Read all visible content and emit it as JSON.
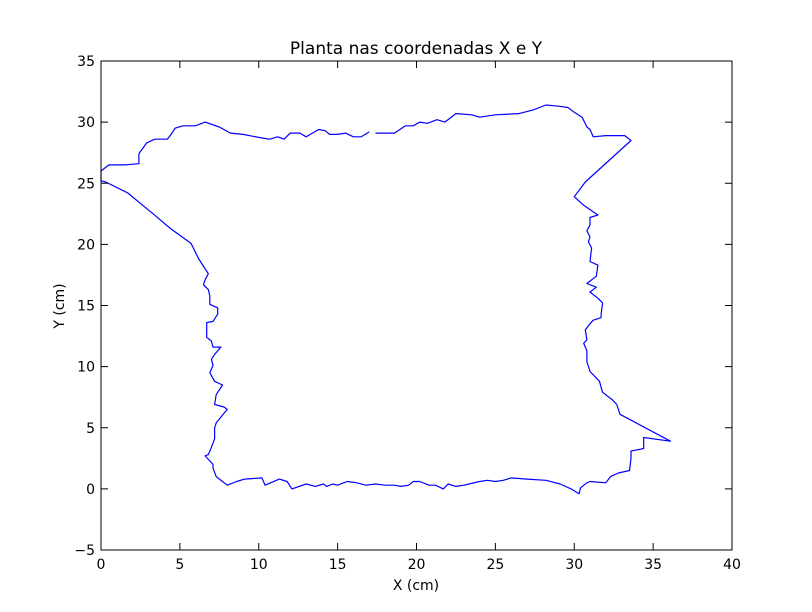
{
  "chart_data": {
    "type": "line",
    "title": "Planta nas coordenadas X e Y",
    "xlabel": "X (cm)",
    "ylabel": "Y (cm)",
    "xlim": [
      0,
      40
    ],
    "ylim": [
      -5,
      35
    ],
    "xticks": [
      0,
      5,
      10,
      15,
      20,
      25,
      30,
      35,
      40
    ],
    "yticks": [
      -5,
      0,
      5,
      10,
      15,
      20,
      25,
      30,
      35
    ],
    "xtick_labels": [
      "0",
      "5",
      "10",
      "15",
      "20",
      "25",
      "30",
      "35",
      "40"
    ],
    "ytick_labels": [
      "−5",
      "0",
      "5",
      "10",
      "15",
      "20",
      "25",
      "30",
      "35"
    ],
    "grid": false,
    "line_color": "#0000ff",
    "series": [
      {
        "segments": [
          [
            [
              17.0,
              29.2
            ],
            [
              16.5,
              28.8
            ],
            [
              16.0,
              28.8
            ],
            [
              15.5,
              29.1
            ],
            [
              15.0,
              29.0
            ],
            [
              14.5,
              29.0
            ],
            [
              14.2,
              29.3
            ],
            [
              13.8,
              29.4
            ],
            [
              13.4,
              29.1
            ],
            [
              13.0,
              28.8
            ],
            [
              12.6,
              29.1
            ],
            [
              12.0,
              29.1
            ],
            [
              11.6,
              28.6
            ],
            [
              11.2,
              28.8
            ],
            [
              10.7,
              28.6
            ],
            [
              10.2,
              28.7
            ],
            [
              9.0,
              29.0
            ],
            [
              8.2,
              29.1
            ],
            [
              7.5,
              29.6
            ],
            [
              6.6,
              30.0
            ],
            [
              6.0,
              29.7
            ],
            [
              5.2,
              29.7
            ],
            [
              4.7,
              29.5
            ],
            [
              4.5,
              29.1
            ],
            [
              4.2,
              28.6
            ],
            [
              3.4,
              28.6
            ],
            [
              2.9,
              28.3
            ],
            [
              2.5,
              27.6
            ],
            [
              2.4,
              27.4
            ],
            [
              2.4,
              26.6
            ],
            [
              1.5,
              26.5
            ],
            [
              0.5,
              26.5
            ],
            [
              0.0,
              26.0
            ],
            [
              0.0,
              25.2
            ],
            [
              0.3,
              25.1
            ],
            [
              1.7,
              24.2
            ],
            [
              3.3,
              22.5
            ],
            [
              4.4,
              21.3
            ],
            [
              5.7,
              20.1
            ],
            [
              6.2,
              18.8
            ],
            [
              6.8,
              17.6
            ],
            [
              6.6,
              17.1
            ],
            [
              6.5,
              16.7
            ],
            [
              6.8,
              16.3
            ],
            [
              6.9,
              15.8
            ],
            [
              6.9,
              15.1
            ],
            [
              7.4,
              14.8
            ],
            [
              7.4,
              14.3
            ],
            [
              7.1,
              13.7
            ],
            [
              6.7,
              13.6
            ],
            [
              6.7,
              12.4
            ],
            [
              7.0,
              12.1
            ],
            [
              7.1,
              11.6
            ],
            [
              7.6,
              11.6
            ],
            [
              7.2,
              11.0
            ],
            [
              7.0,
              10.6
            ],
            [
              7.1,
              10.1
            ],
            [
              6.9,
              9.5
            ],
            [
              7.2,
              8.8
            ],
            [
              7.7,
              8.5
            ],
            [
              7.3,
              7.7
            ],
            [
              7.2,
              6.9
            ],
            [
              7.8,
              6.7
            ],
            [
              8.0,
              6.5
            ],
            [
              7.3,
              5.4
            ],
            [
              7.2,
              5.0
            ],
            [
              7.2,
              4.1
            ],
            [
              7.0,
              3.4
            ],
            [
              6.8,
              2.8
            ],
            [
              6.6,
              2.7
            ],
            [
              7.1,
              2.0
            ],
            [
              7.1,
              1.7
            ],
            [
              7.3,
              1.0
            ],
            [
              8.0,
              0.3
            ],
            [
              8.6,
              0.6
            ],
            [
              9.1,
              0.8
            ],
            [
              10.2,
              0.9
            ],
            [
              10.4,
              0.3
            ],
            [
              11.3,
              0.8
            ],
            [
              11.8,
              0.6
            ],
            [
              12.1,
              0.0
            ],
            [
              13.0,
              0.4
            ],
            [
              13.6,
              0.2
            ],
            [
              14.1,
              0.4
            ],
            [
              14.3,
              0.2
            ],
            [
              14.7,
              0.4
            ],
            [
              15.0,
              0.3
            ],
            [
              15.6,
              0.6
            ],
            [
              16.2,
              0.5
            ],
            [
              16.8,
              0.3
            ],
            [
              17.4,
              0.4
            ],
            [
              18.0,
              0.3
            ],
            [
              18.6,
              0.3
            ],
            [
              19.0,
              0.2
            ],
            [
              19.5,
              0.3
            ],
            [
              19.8,
              0.6
            ],
            [
              20.2,
              0.6
            ],
            [
              20.8,
              0.3
            ],
            [
              21.2,
              0.3
            ],
            [
              21.7,
              0.0
            ],
            [
              22.0,
              0.4
            ],
            [
              22.5,
              0.2
            ],
            [
              23.0,
              0.3
            ],
            [
              24.0,
              0.6
            ],
            [
              24.5,
              0.7
            ],
            [
              25.0,
              0.6
            ],
            [
              25.5,
              0.7
            ],
            [
              26.0,
              0.9
            ],
            [
              27.0,
              0.8
            ],
            [
              28.2,
              0.7
            ],
            [
              29.1,
              0.4
            ],
            [
              29.8,
              0.0
            ],
            [
              30.3,
              -0.4
            ],
            [
              30.4,
              0.1
            ],
            [
              30.8,
              0.5
            ],
            [
              31.0,
              0.6
            ],
            [
              32.0,
              0.5
            ],
            [
              32.3,
              1.0
            ],
            [
              32.8,
              1.3
            ],
            [
              33.5,
              1.5
            ],
            [
              33.6,
              2.5
            ],
            [
              33.6,
              3.1
            ],
            [
              34.0,
              3.2
            ],
            [
              34.4,
              3.3
            ],
            [
              34.4,
              4.2
            ],
            [
              36.1,
              3.9
            ],
            [
              32.9,
              6.1
            ],
            [
              32.7,
              6.9
            ],
            [
              32.4,
              7.3
            ],
            [
              31.8,
              7.9
            ],
            [
              31.7,
              8.3
            ],
            [
              31.6,
              8.8
            ],
            [
              31.0,
              9.6
            ],
            [
              30.8,
              10.4
            ],
            [
              30.8,
              11.3
            ],
            [
              30.6,
              11.9
            ],
            [
              30.8,
              12.2
            ],
            [
              30.7,
              13.0
            ],
            [
              31.0,
              13.5
            ],
            [
              31.2,
              13.8
            ],
            [
              31.7,
              14.0
            ],
            [
              31.7,
              14.3
            ],
            [
              31.8,
              15.2
            ],
            [
              31.5,
              15.6
            ],
            [
              31.0,
              16.1
            ],
            [
              31.4,
              16.5
            ],
            [
              30.8,
              16.8
            ],
            [
              31.4,
              17.4
            ],
            [
              31.5,
              18.3
            ],
            [
              31.0,
              18.6
            ],
            [
              31.1,
              19.7
            ],
            [
              30.9,
              20.2
            ],
            [
              31.0,
              20.6
            ],
            [
              30.8,
              21.1
            ],
            [
              31.0,
              21.6
            ],
            [
              31.0,
              22.2
            ],
            [
              31.5,
              22.4
            ],
            [
              30.6,
              23.2
            ],
            [
              30.0,
              23.9
            ],
            [
              30.7,
              25.1
            ],
            [
              33.6,
              28.5
            ],
            [
              33.2,
              28.9
            ],
            [
              32.0,
              28.9
            ],
            [
              31.2,
              28.8
            ],
            [
              31.0,
              29.4
            ],
            [
              30.8,
              29.6
            ],
            [
              30.5,
              30.4
            ],
            [
              30.0,
              30.8
            ],
            [
              29.6,
              31.2
            ],
            [
              29.0,
              31.3
            ],
            [
              28.2,
              31.4
            ],
            [
              27.4,
              31.0
            ],
            [
              26.5,
              30.7
            ],
            [
              25.0,
              30.6
            ],
            [
              24.0,
              30.4
            ],
            [
              23.5,
              30.6
            ],
            [
              22.5,
              30.7
            ],
            [
              21.8,
              30.0
            ],
            [
              21.3,
              30.2
            ],
            [
              20.7,
              29.9
            ],
            [
              20.2,
              30.0
            ],
            [
              19.8,
              29.7
            ],
            [
              19.3,
              29.7
            ],
            [
              18.6,
              29.1
            ],
            [
              17.8,
              29.1
            ],
            [
              17.4,
              29.1
            ]
          ]
        ]
      }
    ]
  }
}
